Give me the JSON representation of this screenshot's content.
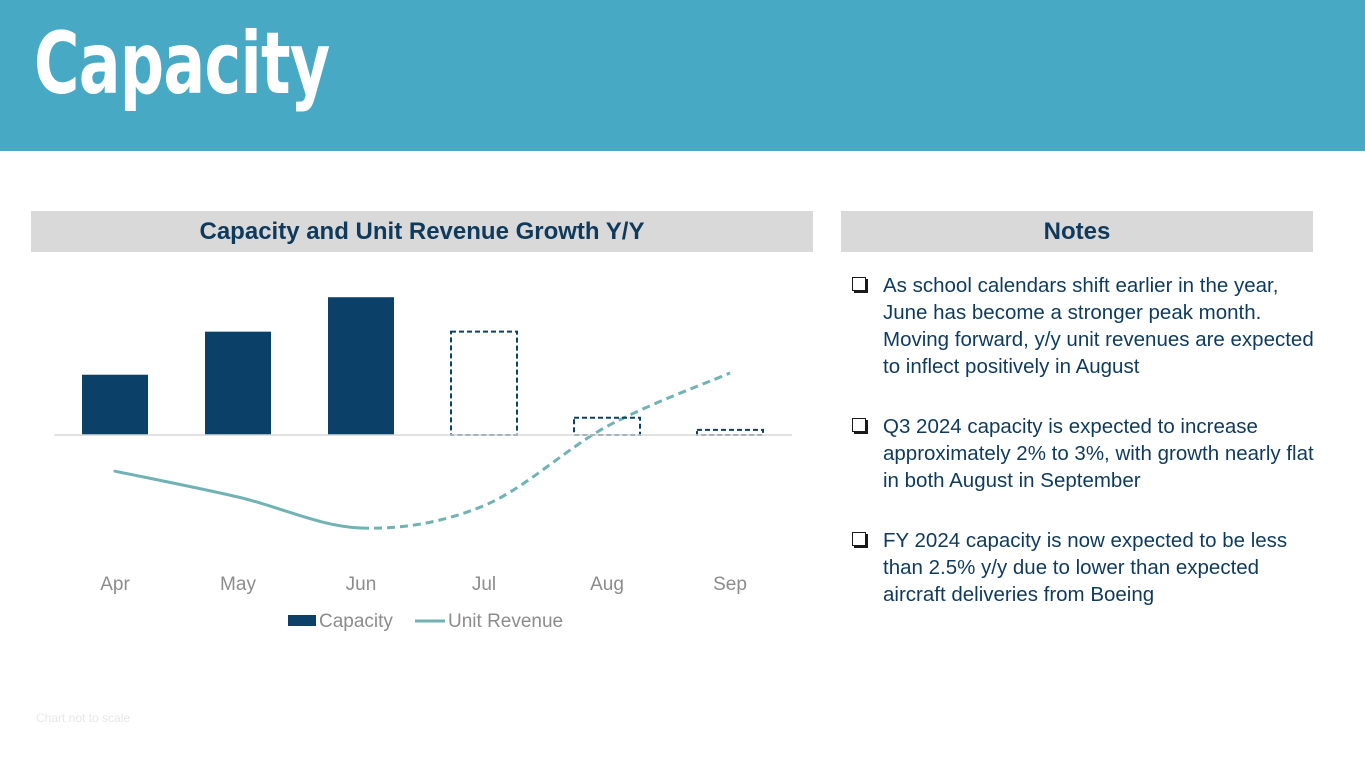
{
  "page": {
    "title": "Capacity",
    "footnote": "Chart not to scale"
  },
  "colors": {
    "header_band": "#48a9c5",
    "section_header_bg": "#d9d9d9",
    "section_header_text": "#0f3a5c",
    "capacity_bar": "#0b4168",
    "unit_revenue_line": "#71b2b4",
    "axis_line": "#d9d9d9",
    "tick_label": "#8c8c8c"
  },
  "chart_section": {
    "header": "Capacity and Unit Revenue Growth Y/Y"
  },
  "notes_section": {
    "header": "Notes",
    "items": [
      {
        "icon": "checkbox-bullet-icon",
        "text": "As school calendars shift earlier in the year, June has become a stronger peak month. Moving forward, y/y unit revenues are expected to inflect positively in August"
      },
      {
        "icon": "checkbox-bullet-icon",
        "text": "Q3 2024 capacity is expected to increase approximately 2% to 3%, with growth nearly flat in both August in September"
      },
      {
        "icon": "checkbox-bullet-icon",
        "text": "FY 2024 capacity is now expected to be less than 2.5% y/y due to lower than expected aircraft deliveries from Boeing"
      }
    ]
  },
  "chart_data": {
    "type": "bar",
    "title": "",
    "xlabel": "",
    "ylabel": "",
    "categories": [
      "Apr",
      "May",
      "Jun",
      "Jul",
      "Aug",
      "Sep"
    ],
    "ylim": [
      -1.8,
      1.8
    ],
    "grid": false,
    "legend_position": "bottom",
    "series": [
      {
        "name": "Capacity",
        "type": "bar",
        "values": [
          0.7,
          1.2,
          1.6,
          1.2,
          0.2,
          0.06
        ],
        "projected": [
          false,
          false,
          false,
          true,
          true,
          true
        ]
      },
      {
        "name": "Unit Revenue",
        "type": "line",
        "values": [
          -0.42,
          -0.72,
          -1.08,
          -0.82,
          0.1,
          0.72
        ],
        "projected_from_index": 2
      }
    ]
  }
}
